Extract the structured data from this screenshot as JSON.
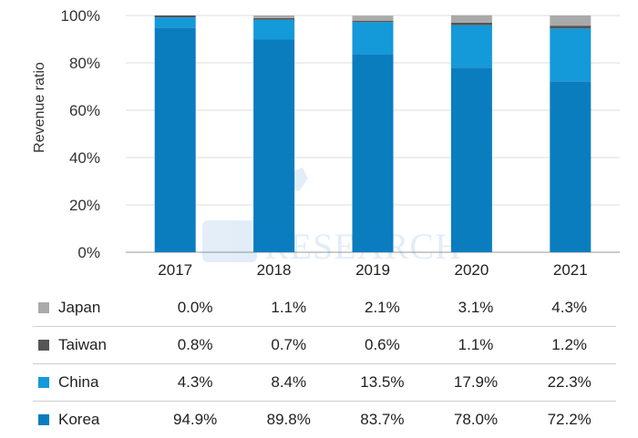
{
  "chart_data": {
    "type": "bar",
    "stacked": true,
    "title": "",
    "xlabel": "",
    "ylabel": "Revenue ratio",
    "ylim": [
      0,
      100
    ],
    "yticks": [
      "0%",
      "20%",
      "40%",
      "60%",
      "80%",
      "100%"
    ],
    "categories": [
      "2017",
      "2018",
      "2019",
      "2020",
      "2021"
    ],
    "series": [
      {
        "name": "Korea",
        "color": "#0a7dbf",
        "values": [
          94.9,
          89.8,
          83.7,
          78.0,
          72.2
        ],
        "labels": [
          "94.9%",
          "89.8%",
          "83.7%",
          "78.0%",
          "72.2%"
        ]
      },
      {
        "name": "China",
        "color": "#1499d9",
        "values": [
          4.3,
          8.4,
          13.5,
          17.9,
          22.3
        ],
        "labels": [
          "4.3%",
          "8.4%",
          "13.5%",
          "17.9%",
          "22.3%"
        ]
      },
      {
        "name": "Taiwan",
        "color": "#555555",
        "values": [
          0.8,
          0.7,
          0.6,
          1.1,
          1.2
        ],
        "labels": [
          "0.8%",
          "0.7%",
          "0.6%",
          "1.1%",
          "1.2%"
        ]
      },
      {
        "name": "Japan",
        "color": "#aaaaaa",
        "values": [
          0.0,
          1.1,
          2.1,
          3.1,
          4.3
        ],
        "labels": [
          "0.0%",
          "1.1%",
          "2.1%",
          "3.1%",
          "4.3%"
        ]
      }
    ],
    "table_order": [
      "Japan",
      "Taiwan",
      "China",
      "Korea"
    ],
    "grid": true,
    "legend": "table-below"
  },
  "watermark": {
    "text": "RESEARCH"
  }
}
